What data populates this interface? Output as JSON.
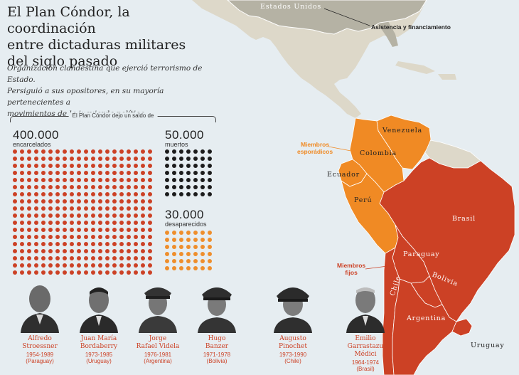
{
  "header": {
    "title_lines": [
      "El Plan Cóndor, la coordinación",
      "entre dictaduras militares",
      "del siglo pasado"
    ],
    "subtitle_lines": [
      "Organización clandestina que ejerció terrorismo de Estado.",
      "Persiguió a sus opositores, en su mayoría pertenecientes a",
      "movimientos de la izquierda política."
    ]
  },
  "saldo": {
    "label": "El Plan Cóndor dejo un saldo de",
    "stats": [
      {
        "value": "400.000",
        "label": "encarcelados",
        "color": "#cc4125"
      },
      {
        "value": "50.000",
        "label": "muertos",
        "color": "#1c1c1c"
      },
      {
        "value": "30.000",
        "label": "desaparecidos",
        "color": "#ef8e2c"
      }
    ]
  },
  "dictators": [
    {
      "name_line1": "Alfredo",
      "name_line2": "Stroessner",
      "years": "1954-1989",
      "country": "(Paraguay)"
    },
    {
      "name_line1": "Juan María",
      "name_line2": "Bordaberry",
      "years": "1973-1985",
      "country": "(Uruguay)"
    },
    {
      "name_line1": "Jorge",
      "name_line2": "Rafael Videla",
      "years": "1976-1981",
      "country": "(Argentina)"
    },
    {
      "name_line1": "Hugo",
      "name_line2": "Banzer",
      "years": "1971-1978",
      "country": "(Bolivia)"
    },
    {
      "name_line1": "Augusto",
      "name_line2": "Pinochet",
      "years": "1973-1990",
      "country": "(Chile)"
    },
    {
      "name_line1": "Emilio",
      "name_line2": "Garrastazu Médici",
      "years": "1964-1974",
      "country": "(Brasil)"
    }
  ],
  "map": {
    "countries": {
      "usa": "Estados Unidos",
      "venezuela": "Venezuela",
      "colombia": "Colombia",
      "ecuador": "Ecuador",
      "peru": "Perú",
      "brasil": "Brasil",
      "paraguay": "Paraguay",
      "bolivia": "Bolivia",
      "chile": "Chile",
      "argentina": "Argentina",
      "uruguay": "Uruguay"
    },
    "annotations": {
      "asistencia": "Asistencia y financiamiento",
      "esporadicos_line1": "Miembros",
      "esporadicos_line2": "esporádicos",
      "fijos_line1": "Miembros",
      "fijos_line2": "fijos"
    },
    "colors": {
      "ocean": "#e6edf1",
      "land": "#ddd8c9",
      "usa": "#b5b2a4",
      "fixed_members": "#cc4125",
      "sporadic_members": "#f08a24"
    }
  }
}
